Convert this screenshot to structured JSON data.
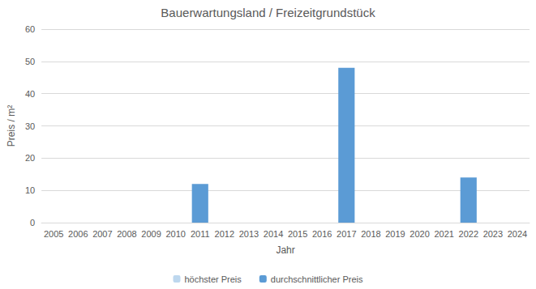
{
  "chart_data": {
    "type": "bar",
    "title": "Bauerwartungsland / Freizeitgrundstück",
    "x_label": "Jahr",
    "y_label": "Preis / m²",
    "categories": [
      "2005",
      "2006",
      "2007",
      "2008",
      "2009",
      "2010",
      "2011",
      "2012",
      "2013",
      "2014",
      "2015",
      "2016",
      "2017",
      "2018",
      "2019",
      "2020",
      "2021",
      "2022",
      "2023",
      "2024"
    ],
    "series": [
      {
        "name": "höchster Preis",
        "color": "#bdd7ee",
        "values": [
          null,
          null,
          null,
          null,
          null,
          null,
          null,
          null,
          null,
          null,
          null,
          null,
          null,
          null,
          null,
          null,
          null,
          null,
          null,
          null
        ]
      },
      {
        "name": "durchschnittlicher Preis",
        "color": "#5b9bd5",
        "values": [
          null,
          null,
          null,
          null,
          null,
          null,
          12,
          null,
          null,
          null,
          null,
          null,
          48,
          null,
          null,
          null,
          null,
          14,
          null,
          null
        ]
      }
    ],
    "ylim": [
      0,
      60
    ],
    "yticks": [
      0,
      10,
      20,
      30,
      40,
      50,
      60
    ],
    "grid": true,
    "legend": "bottom"
  }
}
